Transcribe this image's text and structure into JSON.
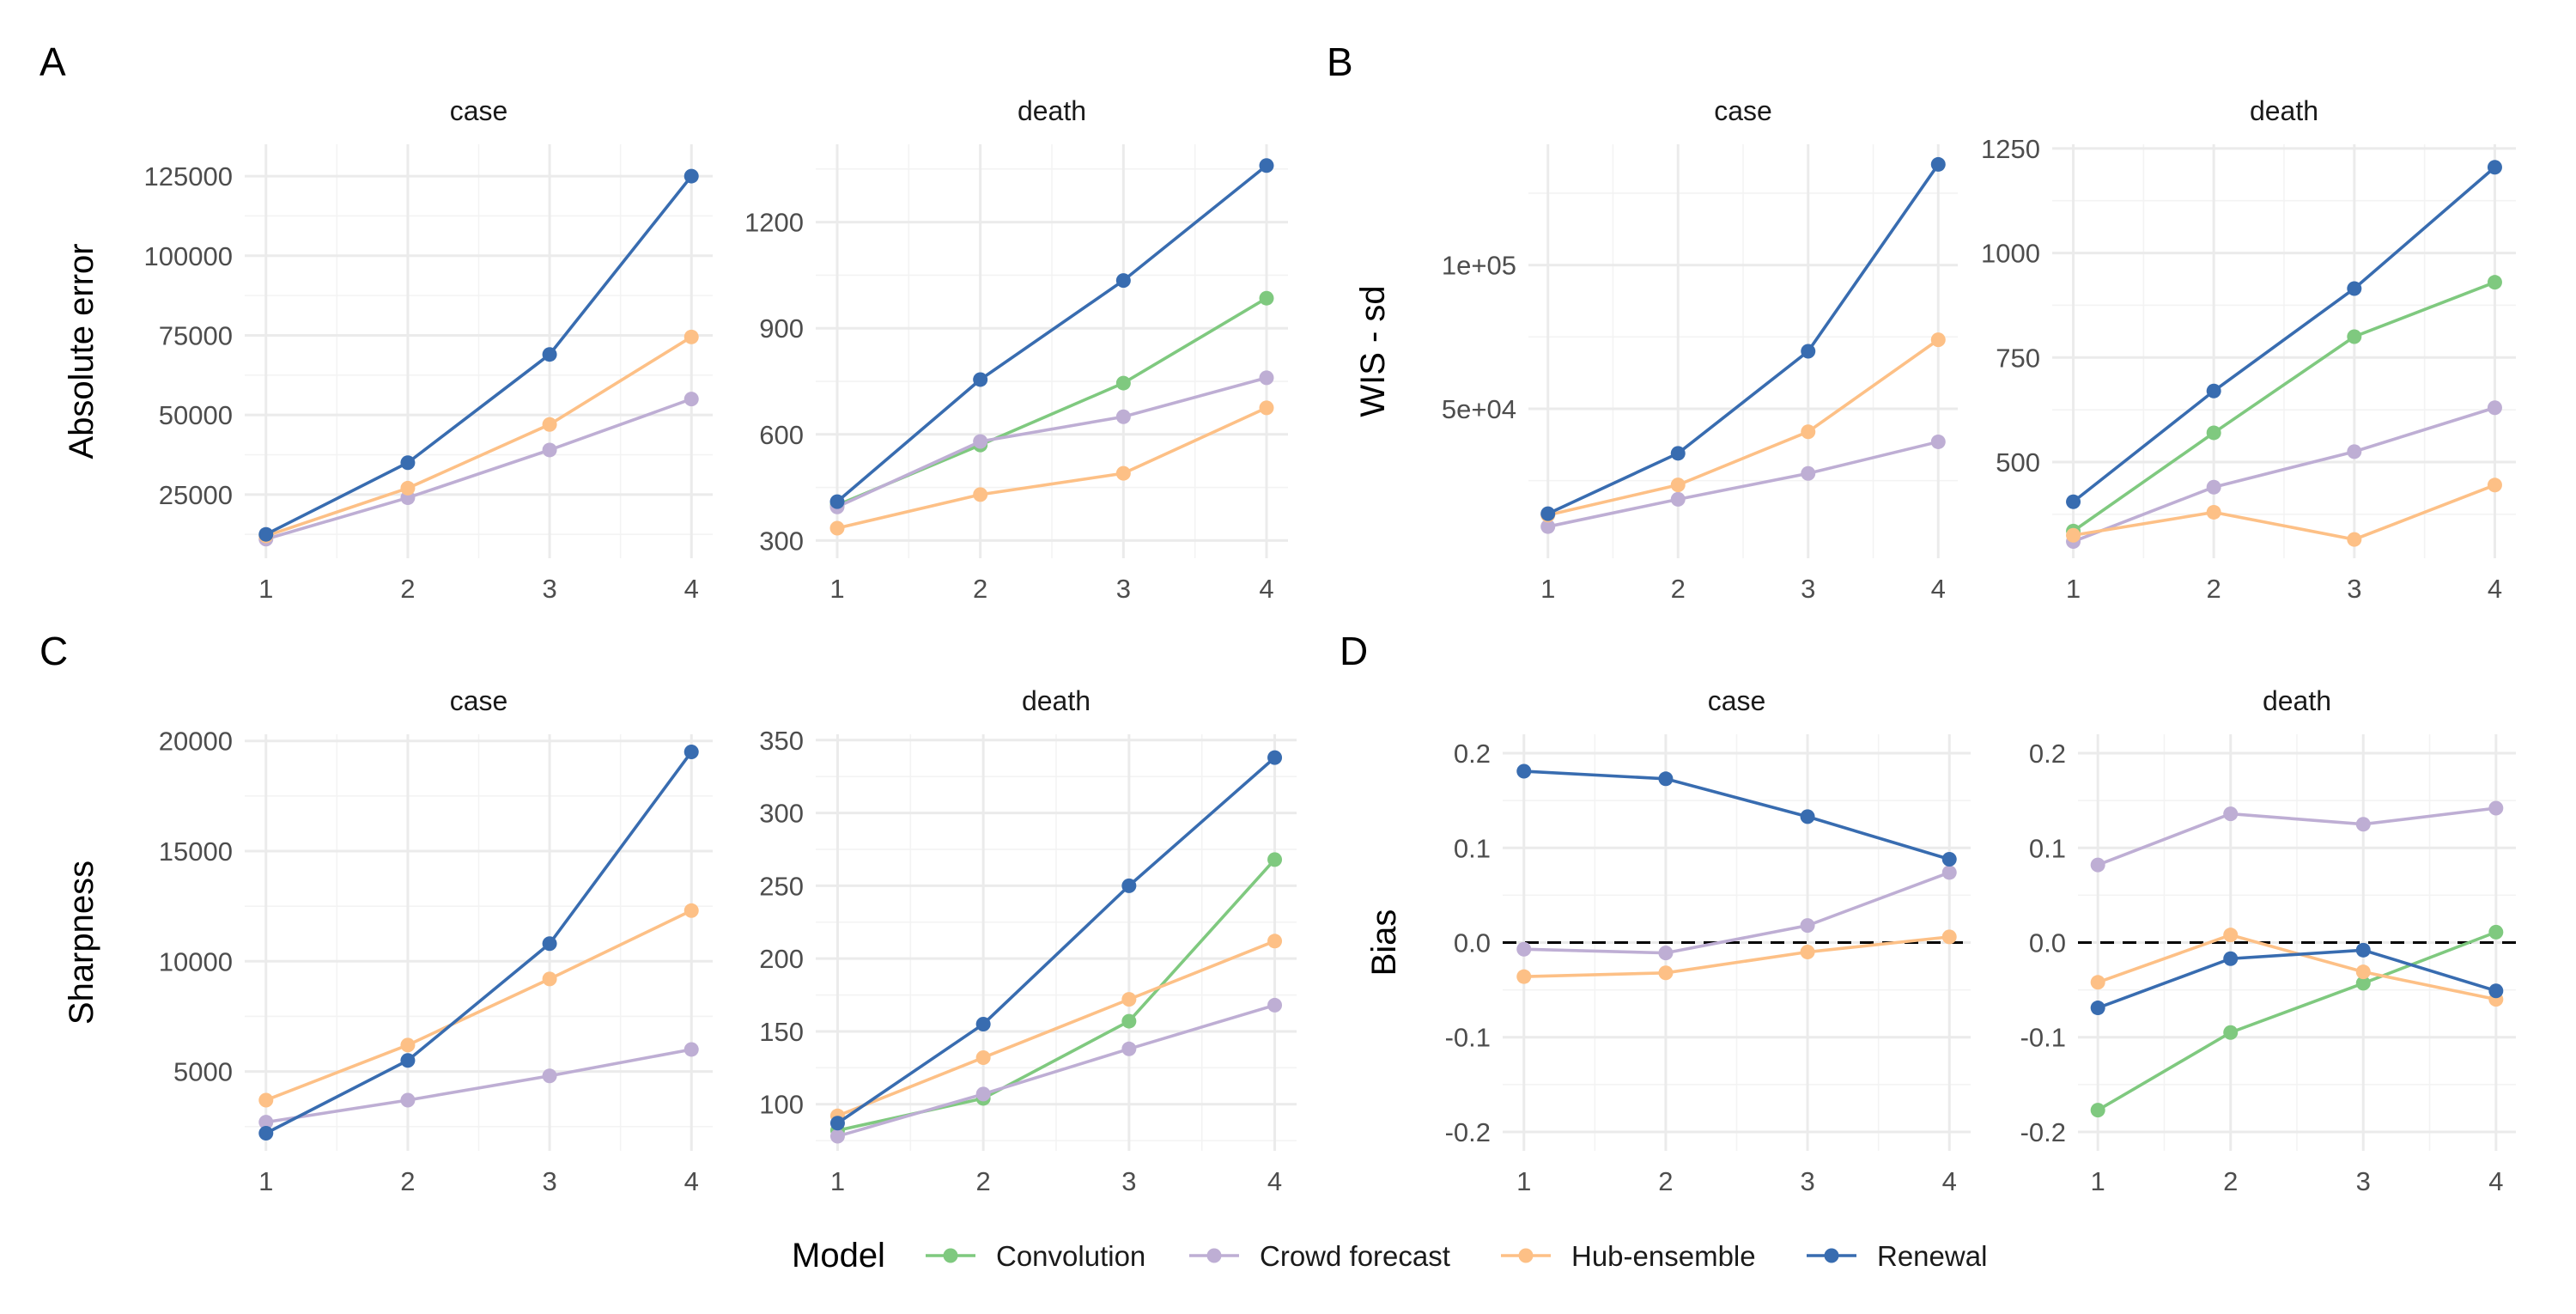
{
  "legend": {
    "title": "Model",
    "items": [
      {
        "label": "Convolution",
        "color": "#7fc97f"
      },
      {
        "label": "Crowd forecast",
        "color": "#beaed4"
      },
      {
        "label": "Hub-ensemble",
        "color": "#fdc086"
      },
      {
        "label": "Renewal",
        "color": "#386cb0"
      }
    ]
  },
  "chart_data": [
    {
      "panel": "A",
      "type": "line",
      "ylabel": "Absolute error",
      "facets": [
        {
          "strip": "case",
          "x": [
            1,
            2,
            3,
            4
          ],
          "ylim": [
            5000,
            135000
          ],
          "yticks": [
            25000,
            50000,
            75000,
            100000,
            125000
          ],
          "ytick_labels": [
            "25000",
            "50000",
            "75000",
            "100000",
            "125000"
          ],
          "series": [
            {
              "model": "Crowd forecast",
              "values": [
                11000,
                24000,
                39000,
                55000
              ]
            },
            {
              "model": "Hub-ensemble",
              "values": [
                12000,
                27000,
                47000,
                74500
              ]
            },
            {
              "model": "Renewal",
              "values": [
                12500,
                35000,
                69000,
                125000
              ]
            }
          ]
        },
        {
          "strip": "death",
          "x": [
            1,
            2,
            3,
            4
          ],
          "ylim": [
            250,
            1420
          ],
          "yticks": [
            300,
            600,
            900,
            1200
          ],
          "ytick_labels": [
            "300",
            "600",
            "900",
            "1200"
          ],
          "series": [
            {
              "model": "Convolution",
              "values": [
                400,
                570,
                745,
                985
              ]
            },
            {
              "model": "Crowd forecast",
              "values": [
                395,
                580,
                650,
                760
              ]
            },
            {
              "model": "Hub-ensemble",
              "values": [
                335,
                430,
                490,
                675
              ]
            },
            {
              "model": "Renewal",
              "values": [
                410,
                755,
                1035,
                1360
              ]
            }
          ]
        }
      ]
    },
    {
      "panel": "B",
      "type": "line",
      "ylabel": "WIS - sd",
      "facets": [
        {
          "strip": "case",
          "x": [
            1,
            2,
            3,
            4
          ],
          "ylim": [
            -2000,
            142000
          ],
          "yticks": [
            50000,
            100000
          ],
          "ytick_labels": [
            "5e+04",
            "1e+05"
          ],
          "series": [
            {
              "model": "Crowd forecast",
              "values": [
                9000,
                18500,
                27500,
                38500
              ]
            },
            {
              "model": "Hub-ensemble",
              "values": [
                13000,
                23500,
                42000,
                74000
              ]
            },
            {
              "model": "Renewal",
              "values": [
                13500,
                34500,
                70000,
                135000
              ]
            }
          ]
        },
        {
          "strip": "death",
          "x": [
            1,
            2,
            3,
            4
          ],
          "ylim": [
            270,
            1260
          ],
          "yticks": [
            500,
            750,
            1000,
            1250
          ],
          "ytick_labels": [
            "500",
            "750",
            "1000",
            "1250"
          ],
          "series": [
            {
              "model": "Convolution",
              "values": [
                335,
                570,
                800,
                930
              ]
            },
            {
              "model": "Crowd forecast",
              "values": [
                310,
                440,
                525,
                630
              ]
            },
            {
              "model": "Hub-ensemble",
              "values": [
                325,
                380,
                315,
                445
              ]
            },
            {
              "model": "Renewal",
              "values": [
                405,
                670,
                915,
                1205
              ]
            }
          ]
        }
      ]
    },
    {
      "panel": "C",
      "type": "line",
      "ylabel": "Sharpness",
      "facets": [
        {
          "strip": "case",
          "x": [
            1,
            2,
            3,
            4
          ],
          "ylim": [
            1400,
            20300
          ],
          "yticks": [
            5000,
            10000,
            15000,
            20000
          ],
          "ytick_labels": [
            "5000",
            "10000",
            "15000",
            "20000"
          ],
          "series": [
            {
              "model": "Crowd forecast",
              "values": [
                2700,
                3700,
                4800,
                6000
              ]
            },
            {
              "model": "Hub-ensemble",
              "values": [
                3700,
                6200,
                9200,
                12300
              ]
            },
            {
              "model": "Renewal",
              "values": [
                2200,
                5500,
                10800,
                19500
              ]
            }
          ]
        },
        {
          "strip": "death",
          "x": [
            1,
            2,
            3,
            4
          ],
          "ylim": [
            68,
            354
          ],
          "yticks": [
            100,
            150,
            200,
            250,
            300,
            350
          ],
          "ytick_labels": [
            "100",
            "150",
            "200",
            "250",
            "300",
            "350"
          ],
          "series": [
            {
              "model": "Convolution",
              "values": [
                82,
                104,
                157,
                268
              ]
            },
            {
              "model": "Crowd forecast",
              "values": [
                78,
                107,
                138,
                168
              ]
            },
            {
              "model": "Hub-ensemble",
              "values": [
                92,
                132,
                172,
                212
              ]
            },
            {
              "model": "Renewal",
              "values": [
                87,
                155,
                250,
                338
              ]
            }
          ]
        }
      ]
    },
    {
      "panel": "D",
      "type": "line",
      "ylabel": "Bias",
      "reference_line": 0,
      "facets": [
        {
          "strip": "case",
          "x": [
            1,
            2,
            3,
            4
          ],
          "ylim": [
            -0.22,
            0.22
          ],
          "yticks": [
            -0.2,
            -0.1,
            0.0,
            0.1,
            0.2
          ],
          "ytick_labels": [
            "-0.2",
            "-0.1",
            "0.0",
            "0.1",
            "0.2"
          ],
          "series": [
            {
              "model": "Crowd forecast",
              "values": [
                -0.007,
                -0.011,
                0.018,
                0.074
              ]
            },
            {
              "model": "Hub-ensemble",
              "values": [
                -0.036,
                -0.032,
                -0.01,
                0.006
              ]
            },
            {
              "model": "Renewal",
              "values": [
                0.181,
                0.173,
                0.133,
                0.088
              ]
            }
          ]
        },
        {
          "strip": "death",
          "x": [
            1,
            2,
            3,
            4
          ],
          "ylim": [
            -0.22,
            0.22
          ],
          "yticks": [
            -0.2,
            -0.1,
            0.0,
            0.1,
            0.2
          ],
          "ytick_labels": [
            "-0.2",
            "-0.1",
            "0.0",
            "0.1",
            "0.2"
          ],
          "series": [
            {
              "model": "Convolution",
              "values": [
                -0.177,
                -0.095,
                -0.043,
                0.011
              ]
            },
            {
              "model": "Crowd forecast",
              "values": [
                0.082,
                0.136,
                0.125,
                0.142
              ]
            },
            {
              "model": "Hub-ensemble",
              "values": [
                -0.042,
                0.008,
                -0.031,
                -0.06
              ]
            },
            {
              "model": "Renewal",
              "values": [
                -0.069,
                -0.017,
                -0.008,
                -0.051
              ]
            }
          ]
        }
      ]
    }
  ]
}
